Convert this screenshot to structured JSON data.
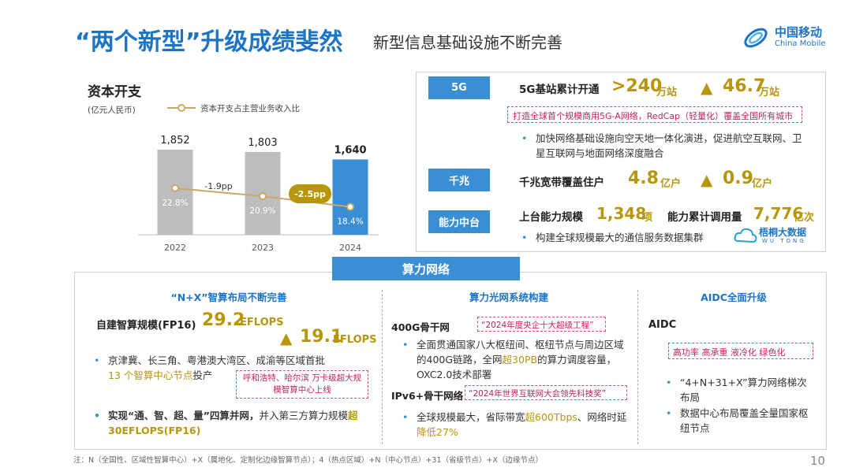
{
  "header": {
    "title": "“两个新型”升级成绩斐然",
    "subtitle": "新型信息基础设施不断完善",
    "logo_cn": "中国移动",
    "logo_en": "China Mobile"
  },
  "capex": {
    "title": "资本开支",
    "unit": "(亿元人民币)",
    "legend": "资本开支占主营业务收入比",
    "chart_data": {
      "type": "bar",
      "categories": [
        "2022",
        "2023",
        "2024"
      ],
      "series": [
        {
          "values": [
            1852,
            1803,
            1640
          ],
          "value_labels": [
            "1,852",
            "1,803",
            "1,640"
          ]
        },
        {
          "name": "资本开支占主营业务收入比",
          "type": "line",
          "values": [
            22.8,
            20.9,
            18.4
          ],
          "value_labels": [
            "22.8%",
            "20.9%",
            "18.4%"
          ]
        }
      ],
      "changes": [
        "-1.9pp",
        "-2.5pp"
      ]
    }
  },
  "infra": {
    "fiveg": {
      "tag": "5G",
      "label": "5G基站累计开通",
      "value1": ">240",
      "unit1": "万站",
      "arrow": "▲",
      "value2": "46.7",
      "unit2": "万站",
      "note": "打造全球首个规模商用5G-A网络，RedCap（轻量化）覆盖全国所有城市",
      "bullet": "加快网络基础设施向空天地一体化演进，促进航空互联网、卫星互联网与地面网络深度融合"
    },
    "gigabit": {
      "tag": "千兆",
      "label": "千兆宽带覆盖住户",
      "value1": "4.8",
      "unit1": "亿户",
      "arrow": "▲",
      "value2": "0.9",
      "unit2": "亿户"
    },
    "capability": {
      "tag": "能力中台",
      "label1": "上台能力规模",
      "value1": "1,348",
      "unit1": "项",
      "label2": "能力累计调用量",
      "value2": "7,776",
      "unit2": "亿次",
      "bullet": "构建全球规模最大的通信服务数据集群",
      "brand_cn": "梧桐大数据",
      "brand_en": "WU TONG"
    }
  },
  "compute": {
    "banner": "算力网络",
    "col1": {
      "title": "“N+X”智算布局不断完善",
      "label": "自建智算规模(FP16)",
      "value1": "29.2",
      "unit1": "EFLOPS",
      "arrow": "▲",
      "value2": "19.1",
      "unit2": "EFLOPS",
      "bullet1": "京津冀、长三角、粤港澳大湾区、成渝等区域首批",
      "bullet1_b": "13 个智算中心节点",
      "bullet1_c": "投产",
      "note": "呼和浩特、哈尔滨 万卡级超大规模智算中心上线",
      "bullet2_a": "实现“通、智、超、量”四算并网，",
      "bullet2_b": "并入第三方算力规模",
      "bullet2_c": "超30EFLOPS(FP16)"
    },
    "col2": {
      "title": "算力光网系统构建",
      "label1": "400G骨干网",
      "note1": "“2024年度央企十大超级工程”",
      "bullet1_a": "全面贯通国家八大枢纽间、枢纽节点与周边区域的400G链路，全网",
      "bullet1_b": "超30PB",
      "bullet1_c": "的算力调度容量，OXC2.0技术部署",
      "label2": "IPv6+骨干网络",
      "note2": "“2024年世界互联网大会领先科技奖”",
      "bullet2_a": "全球规模最大，省际带宽",
      "bullet2_b": "超600Tbps",
      "bullet2_c": "、网络时延",
      "bullet2_d": "降低27%"
    },
    "col3": {
      "title": "AIDC全面升级",
      "label": "AIDC",
      "note": "高功率 高承重 液冷化 绿色化",
      "bullet1": "“4+N+31+X”算力网络梯次布局",
      "bullet2": "数据中心布局覆盖全量国家枢纽节点"
    }
  },
  "footer": {
    "note": "注：N（全国性、区域性智算中心）+X（属地化、定制化边缘智算节点）；4（热点区域）+N（中心节点）+31（省级节点）+X（边缘节点）",
    "page": "10"
  }
}
